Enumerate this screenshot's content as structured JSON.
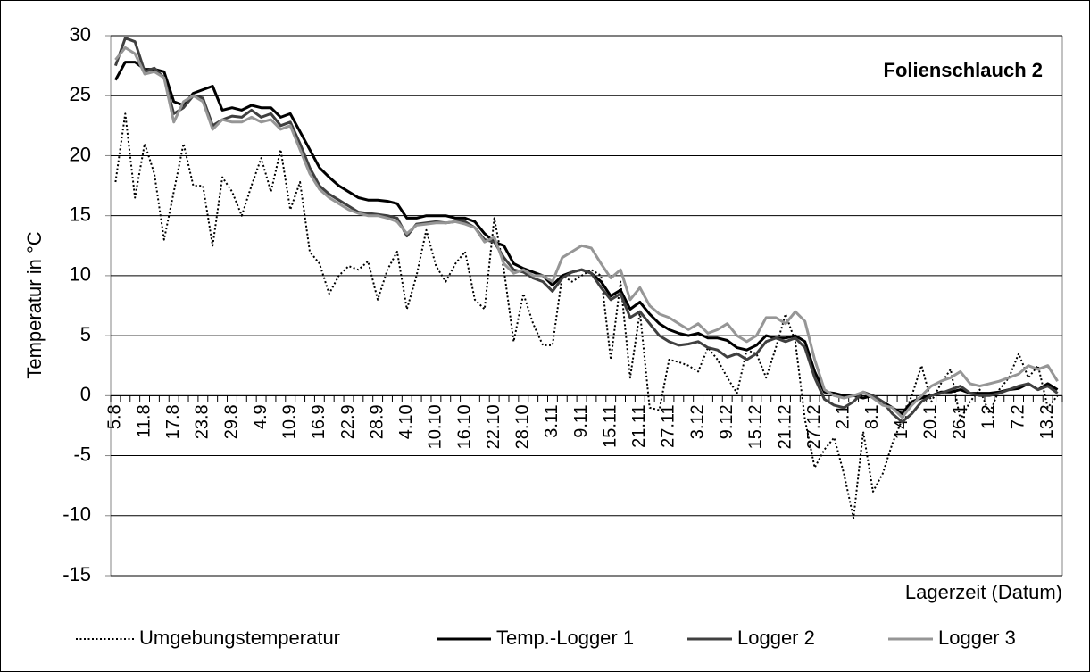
{
  "chart_data": {
    "type": "line",
    "title": "Folienschlauch 2",
    "y_label": "Temperatur in °C",
    "x_label": "Lagerzeit (Datum)",
    "categories": [
      "5.8",
      null,
      null,
      "11.8",
      null,
      null,
      "17.8",
      null,
      null,
      "23.8",
      null,
      null,
      "29.8",
      null,
      null,
      "4.9",
      null,
      null,
      "10.9",
      null,
      null,
      "16.9",
      null,
      null,
      "22.9",
      null,
      null,
      "28.9",
      null,
      null,
      "4.10",
      null,
      null,
      "10.10",
      null,
      null,
      "16.10",
      null,
      null,
      "22.10",
      null,
      null,
      "28.10",
      null,
      null,
      "3.11",
      null,
      null,
      "9.11",
      null,
      null,
      "15.11",
      null,
      null,
      "21.11",
      null,
      null,
      "27.11",
      null,
      null,
      "3.12",
      null,
      null,
      "9.12",
      null,
      null,
      "15.12",
      null,
      null,
      "21.12",
      null,
      null,
      "27.12",
      null,
      null,
      "2.1",
      null,
      null,
      "8.1",
      null,
      null,
      "14.1",
      null,
      null,
      "20.1",
      null,
      null,
      "26.1",
      null,
      null,
      "1.2",
      null,
      null,
      "7.2",
      null,
      null,
      "13.2",
      null
    ],
    "series": [
      {
        "name": "Umgebungstemperatur",
        "color": "#000000",
        "line_style": "dotted",
        "values": [
          17.8,
          23.5,
          16.5,
          21,
          18.5,
          13,
          17,
          21,
          17.5,
          17.5,
          12.5,
          18.2,
          17,
          15,
          17.5,
          19.8,
          17,
          20.5,
          15.5,
          17.8,
          12,
          11,
          8.5,
          10,
          10.8,
          10.5,
          11.2,
          8,
          10.5,
          12,
          7.2,
          10,
          13.8,
          10.8,
          9.5,
          11,
          12,
          8,
          7.2,
          14.8,
          10.5,
          4.5,
          8.5,
          6,
          4.2,
          4.2,
          10,
          9.5,
          10,
          10.5,
          10,
          3,
          9.5,
          1.5,
          7,
          -1,
          -1.2,
          3,
          2.8,
          2.5,
          2,
          4,
          3,
          1.5,
          0.2,
          3.8,
          3.5,
          1.5,
          4,
          6.8,
          4.5,
          -2,
          -6,
          -4.5,
          -3.5,
          -6.5,
          -10.2,
          -3,
          -8,
          -6.5,
          -4,
          -2,
          0,
          2.5,
          -0.5,
          1,
          2.2,
          -2,
          -0.5,
          0.5,
          -1.5,
          0.5,
          1.5,
          3.5,
          1.5,
          2.5,
          -1,
          0
        ]
      },
      {
        "name": "Temp.-Logger 1",
        "color": "#000000",
        "line_style": "solid",
        "values": [
          26.3,
          27.8,
          27.8,
          27.2,
          27.2,
          27,
          24.5,
          24.2,
          25.2,
          25.5,
          25.8,
          23.8,
          24,
          23.8,
          24.2,
          24,
          24,
          23.2,
          23.5,
          22,
          20.5,
          19,
          18.2,
          17.5,
          17,
          16.5,
          16.3,
          16.3,
          16.2,
          16,
          14.8,
          14.8,
          15,
          15,
          15,
          14.8,
          14.8,
          14.5,
          13.5,
          12.8,
          12.5,
          11,
          10.6,
          10.3,
          10,
          9.2,
          10,
          10.3,
          10.5,
          10.2,
          9.5,
          8.3,
          8.8,
          7.2,
          7.8,
          6.8,
          6,
          5.5,
          5.2,
          5,
          5.2,
          4.8,
          4.8,
          4.6,
          4,
          3.8,
          4.2,
          5,
          4.8,
          4.8,
          5,
          4.5,
          2,
          0.3,
          0.2,
          0,
          0,
          -0.2,
          0,
          -0.5,
          -1,
          -1.5,
          -0.5,
          -0.2,
          0,
          0.3,
          0.3,
          0.5,
          0.2,
          0.2,
          0.2,
          0.3,
          0.5,
          0.6,
          1,
          0.5,
          1,
          0.5
        ]
      },
      {
        "name": "Logger 2",
        "color": "#404040",
        "line_style": "solid",
        "values": [
          27.5,
          29.8,
          29.5,
          27,
          27.3,
          26.5,
          23.5,
          24,
          25,
          24.8,
          22.5,
          23,
          23.3,
          23.2,
          23.8,
          23.2,
          23.5,
          22.5,
          22.8,
          21,
          19,
          17.5,
          16.8,
          16.3,
          15.8,
          15.3,
          15.2,
          15.1,
          15,
          14.8,
          13.3,
          14.3,
          14.4,
          14.5,
          14.4,
          14.5,
          14.5,
          14,
          13,
          12.8,
          11.5,
          10.5,
          10.3,
          9.8,
          9.5,
          8.7,
          9.8,
          10.3,
          10.5,
          10.2,
          9,
          8,
          8.5,
          6.5,
          7,
          6,
          5,
          4.5,
          4.2,
          4.3,
          4.5,
          4,
          3.8,
          3.2,
          3.5,
          3,
          3.5,
          4.5,
          4.8,
          4.5,
          4.8,
          4,
          1.5,
          -0.3,
          -0.8,
          -1,
          -0.5,
          0.3,
          0,
          -0.5,
          -1.5,
          -2.2,
          -1.5,
          -0.5,
          0,
          0.2,
          0.5,
          0.8,
          0.2,
          0,
          0,
          0.2,
          0.5,
          0.8,
          1,
          0.5,
          0.8,
          0.2
        ]
      },
      {
        "name": "Logger 3",
        "color": "#969696",
        "line_style": "solid",
        "values": [
          28,
          29,
          28.5,
          26.8,
          27,
          26.5,
          22.8,
          24.5,
          25,
          24.5,
          22.2,
          23,
          22.8,
          22.8,
          23.2,
          22.8,
          23,
          22.2,
          22.5,
          20.5,
          18.5,
          17.2,
          16.5,
          16,
          15.5,
          15.2,
          15,
          15,
          14.8,
          14.5,
          13.5,
          14.2,
          14.3,
          14.4,
          14.4,
          14.5,
          14.3,
          14,
          12.8,
          13.2,
          11,
          10.2,
          10.5,
          10,
          10,
          9.5,
          11.5,
          12,
          12.5,
          12.3,
          11,
          9.8,
          10.5,
          8,
          9,
          7.5,
          6.8,
          6.5,
          6,
          5.5,
          6,
          5.2,
          5.5,
          6,
          5,
          4.5,
          5,
          6.5,
          6.5,
          6,
          7,
          6.2,
          3,
          0.5,
          0,
          -0.2,
          0,
          0.3,
          -0.2,
          -0.8,
          -1,
          -1.8,
          -0.8,
          0,
          0.8,
          1.2,
          1.5,
          2,
          1,
          0.8,
          1,
          1.2,
          1.5,
          1.8,
          2.5,
          2.2,
          2.5,
          1.2
        ]
      }
    ],
    "ylim": [
      -15,
      30
    ],
    "yticks": [
      -15,
      -10,
      -5,
      0,
      5,
      10,
      15,
      20,
      25,
      30
    ],
    "grid": true,
    "legend": "bottom"
  }
}
